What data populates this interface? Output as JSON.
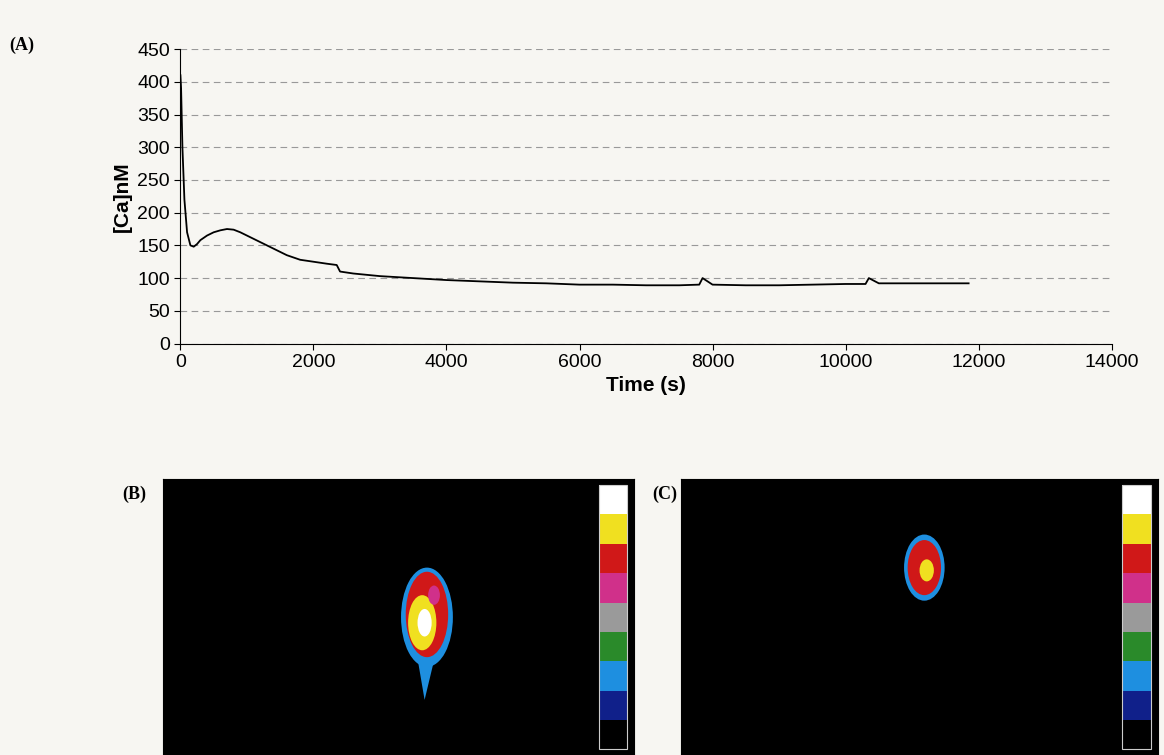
{
  "chart_data": {
    "type": "line",
    "panel_label": "(A)",
    "x_label": "Time (s)",
    "y_label": "[Ca]nM",
    "x": [
      0,
      10,
      30,
      60,
      100,
      150,
      200,
      250,
      300,
      400,
      500,
      600,
      700,
      800,
      900,
      1000,
      1200,
      1400,
      1600,
      1800,
      2000,
      2200,
      2350,
      2400,
      2600,
      2800,
      3000,
      3500,
      4000,
      4500,
      5000,
      5500,
      6000,
      6500,
      7000,
      7500,
      7800,
      7850,
      8000,
      8500,
      9000,
      9500,
      10000,
      10300,
      10350,
      10500,
      11000,
      11500,
      11850
    ],
    "values": [
      410,
      390,
      300,
      220,
      170,
      150,
      148,
      152,
      158,
      165,
      170,
      173,
      175,
      174,
      170,
      165,
      155,
      145,
      135,
      128,
      125,
      122,
      120,
      110,
      107,
      105,
      103,
      100,
      97,
      95,
      93,
      92,
      90,
      90,
      89,
      89,
      90,
      100,
      90,
      89,
      89,
      90,
      91,
      91,
      100,
      92,
      92,
      92,
      92
    ],
    "color": "#000000",
    "xlim": [
      0,
      14000
    ],
    "xticks": [
      0,
      2000,
      4000,
      6000,
      8000,
      10000,
      12000,
      14000
    ],
    "ylim": [
      0,
      450
    ],
    "yticks": [
      0,
      50,
      100,
      150,
      200,
      250,
      300,
      350,
      400,
      450
    ],
    "grid": true
  },
  "images": [
    {
      "label": "(B)"
    },
    {
      "label": "(C)"
    }
  ]
}
